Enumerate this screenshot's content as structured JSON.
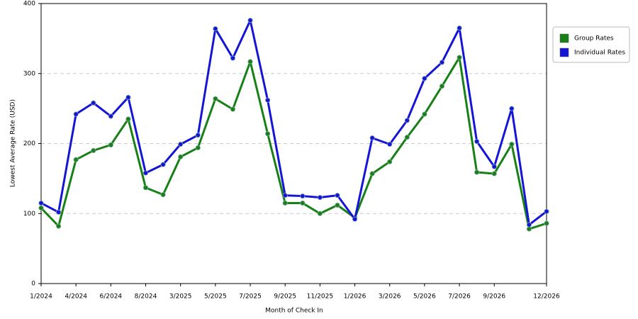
{
  "chart_data": {
    "type": "line",
    "x_label": "Month of Check In",
    "y_label": "Lowest Average Rate (USD)",
    "categories": [
      "1/2024",
      null,
      "4/2024",
      null,
      "6/2024",
      null,
      "8/2024",
      null,
      "3/2025",
      null,
      "5/2025",
      null,
      "7/2025",
      null,
      "9/2025",
      null,
      "11/2025",
      null,
      "1/2026",
      null,
      "3/2026",
      null,
      "5/2026",
      null,
      "7/2026",
      null,
      "9/2026",
      null,
      null,
      "12/2026"
    ],
    "series": [
      {
        "name": "Group Rates",
        "color": "#178017",
        "values": [
          108,
          82,
          177,
          190,
          198,
          235,
          137,
          127,
          181,
          194,
          264,
          249,
          317,
          214,
          115,
          115,
          100,
          112,
          94,
          157,
          174,
          209,
          242,
          282,
          323,
          159,
          157,
          199,
          78,
          86
        ]
      },
      {
        "name": "Individual Rates",
        "color": "#1515d6",
        "values": [
          115,
          102,
          242,
          258,
          239,
          266,
          158,
          170,
          199,
          212,
          364,
          322,
          376,
          262,
          126,
          125,
          123,
          126,
          92,
          208,
          199,
          233,
          293,
          316,
          365,
          203,
          167,
          250,
          84,
          103
        ]
      }
    ],
    "ylim": [
      0,
      400
    ],
    "yticks": [
      0,
      100,
      200,
      300,
      400
    ],
    "grid": true,
    "legend": "right"
  }
}
